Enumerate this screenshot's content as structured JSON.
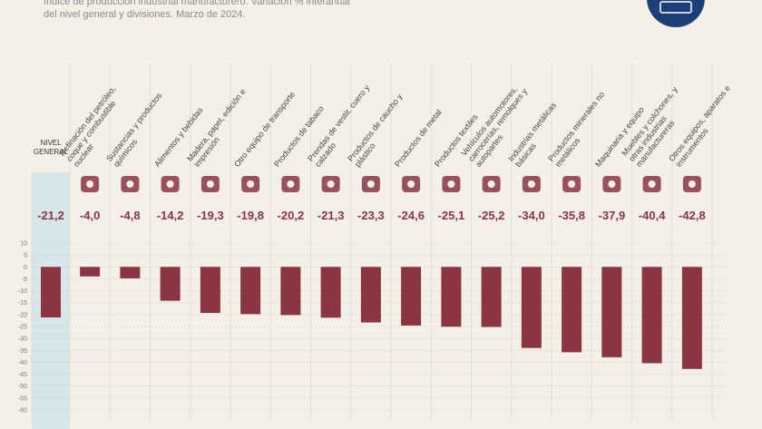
{
  "chart_data": {
    "type": "bar",
    "subtitle_lines": [
      "Índice de producción industrial manufacturero. Variación % interanual",
      "del nivel general y divisiones. Marzo de 2024."
    ],
    "categories": [
      "NIVEL GENERAL",
      "Refinación del petróleo, coque y combustible nuclear",
      "Sustancias y productos químicos",
      "Alimentos y bebidas",
      "Madera, papel, edición e impresión",
      "Otro equipo de transporte",
      "Productos de tabaco",
      "Prendas de vestir, cuero y calzado",
      "Productos de caucho y plástico",
      "Productos de metal",
      "Productos textiles",
      "Vehículos automotores, carrocerías, remolques y autopartes",
      "Industrias metálicas básicas",
      "Productos minerales no metálicos",
      "Maquinaria y equipo",
      "Muebles y colchones, y otras industrias manufactureras",
      "Otros equipos, aparatos e instrumentos"
    ],
    "values": [
      -21.2,
      -4.0,
      -4.8,
      -14.2,
      -19.3,
      -19.8,
      -20.2,
      -21.3,
      -23.3,
      -24.6,
      -25.1,
      -25.2,
      -34.0,
      -35.8,
      -37.9,
      -40.4,
      -42.8
    ],
    "value_labels": [
      "-21,2",
      "-4,0",
      "-4,8",
      "-14,2",
      "-19,3",
      "-19,8",
      "-20,2",
      "-21,3",
      "-23,3",
      "-24,6",
      "-25,1",
      "-25,2",
      "-34,0",
      "-35,8",
      "-37,9",
      "-40,4",
      "-42,8"
    ],
    "color": "#8b3543",
    "ylim": [
      -60,
      10
    ],
    "yticks": [
      10,
      5,
      0,
      -5,
      -10,
      -15,
      -20,
      -25,
      -30,
      -35,
      -40,
      -45,
      -50,
      -55,
      -60
    ],
    "grid": true
  }
}
